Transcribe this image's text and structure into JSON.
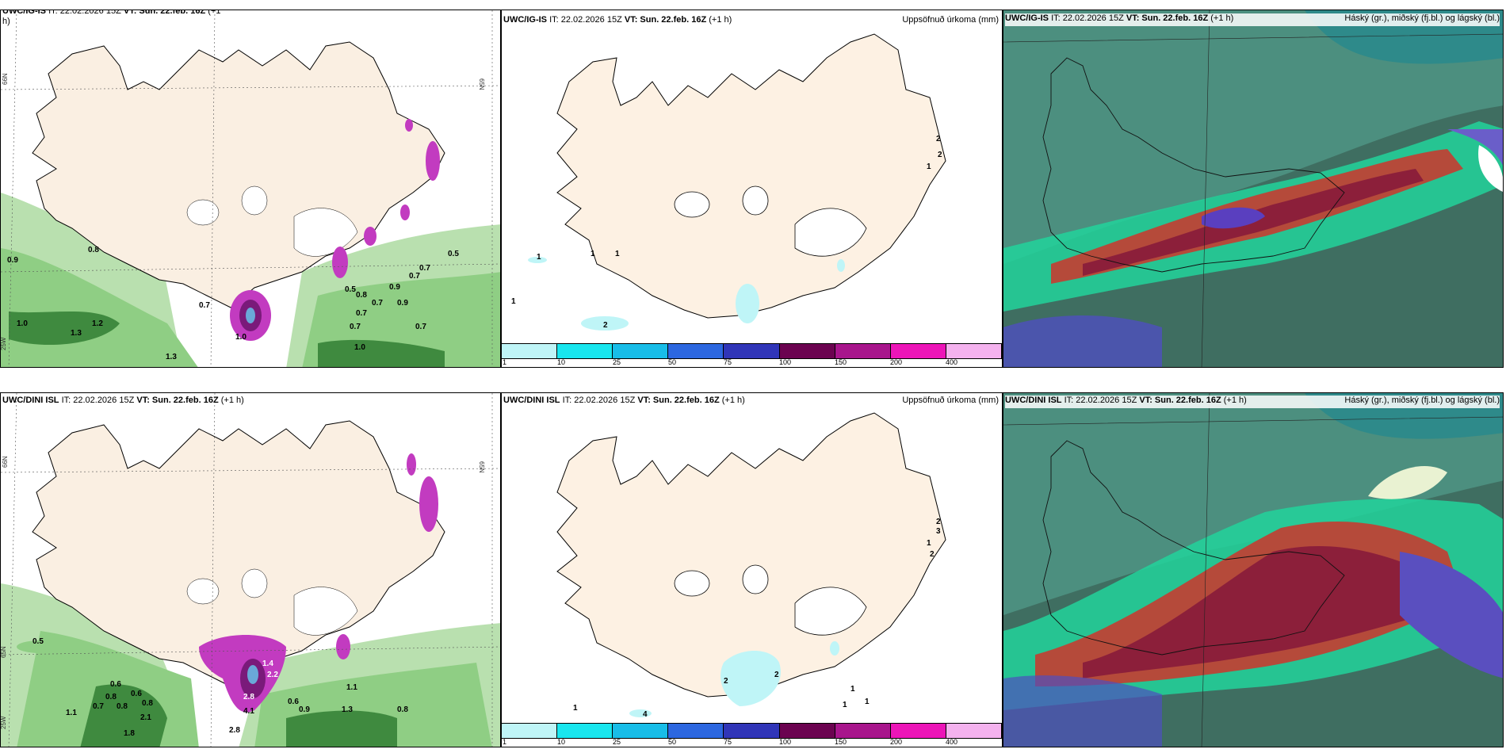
{
  "rows": [
    {
      "wind_panel": {
        "model": "UWC/IG-IS",
        "it_label": "IT: 22.02.2026 15Z",
        "vt_label": "VT: Sun. 22.feb. 16Z",
        "lead": "(+1",
        "lead2": "h)"
      },
      "precip_panel": {
        "model": "UWC/IG-IS",
        "it_label": "IT: 22.02.2026 15Z",
        "vt_label": "VT: Sun. 22.feb. 16Z",
        "lead": "(+1 h)",
        "right_title": "Uppsöfnuð úrkoma (mm)"
      },
      "cloud_panel": {
        "model": "UWC/IG-IS",
        "it_label": "IT: 22.02.2026 15Z",
        "vt_label": "VT: Sun. 22.feb. 16Z",
        "lead": "(+1 h)",
        "right_title": "Háský (gr.), miðský (fj.bl.) og lágský (bl.)"
      },
      "wind_values": [
        "0.9",
        "0.8",
        "1.0",
        "1.3",
        "1.2",
        "0.7",
        "1.0",
        "0.5",
        "0.8",
        "0.7",
        "0.9",
        "0.7",
        "0.7",
        "0.9",
        "0.7",
        "1.0",
        "0.7",
        "0.7",
        "0.5",
        "1.3"
      ],
      "precip_values": [
        "1",
        "1",
        "1",
        "1",
        "2",
        "2",
        "2",
        "1"
      ]
    },
    {
      "wind_panel": {
        "model": "UWC/DINI ISL",
        "it_label": "IT: 22.02.2026 15Z",
        "vt_label": "VT: Sun. 22.feb. 16Z",
        "lead": "(+1 h)",
        "lead2": ""
      },
      "precip_panel": {
        "model": "UWC/DINI ISL",
        "it_label": "IT: 22.02.2026 15Z",
        "vt_label": "VT: Sun. 22.feb. 16Z",
        "lead": "(+1 h)",
        "right_title": "Uppsöfnuð úrkoma (mm)"
      },
      "cloud_panel": {
        "model": "UWC/DINI ISL",
        "it_label": "IT: 22.02.2026 15Z",
        "vt_label": "VT: Sun. 22.feb. 16Z",
        "lead": "(+1 h)",
        "right_title": "Háský (gr.), miðský (fj.bl.) og lágský (bl.)"
      },
      "wind_values": [
        "0.5",
        "1.4",
        "2.2",
        "2.8",
        "4.1",
        "2.8",
        "0.6",
        "0.8",
        "0.6",
        "0.7",
        "0.8",
        "0.8",
        "2.1",
        "1.1",
        "1.8",
        "0.6",
        "0.9",
        "1.1",
        "0.8",
        "1.3"
      ],
      "precip_values": [
        "2",
        "3",
        "1",
        "2",
        "2",
        "2",
        "4",
        "1",
        "1",
        "1",
        "1"
      ]
    }
  ],
  "colorbar": {
    "labels": [
      "1",
      "10",
      "25",
      "50",
      "75",
      "100",
      "150",
      "200",
      "400"
    ],
    "colors": [
      "#bff5f7",
      "#19e6ee",
      "#18bde8",
      "#2c67e0",
      "#3035b8",
      "#6b0350",
      "#a8158c",
      "#ec15b8",
      "#f4b2ee"
    ]
  },
  "axis_labels": {
    "lat66": "66N",
    "lon25": "25W",
    "lat65": "65N",
    "lon20": "20W"
  },
  "colors": {
    "land": "#faefe2",
    "ice": "#ffffff",
    "rain_green": "#8fce84",
    "rain_dark": "#2c6e2e",
    "purple": "#c23bc0",
    "cloud_dark": "#355e55",
    "cloud_teal": "#4aa694",
    "cloud_red": "#8c1f3a",
    "cloud_green": "#22d49b"
  }
}
